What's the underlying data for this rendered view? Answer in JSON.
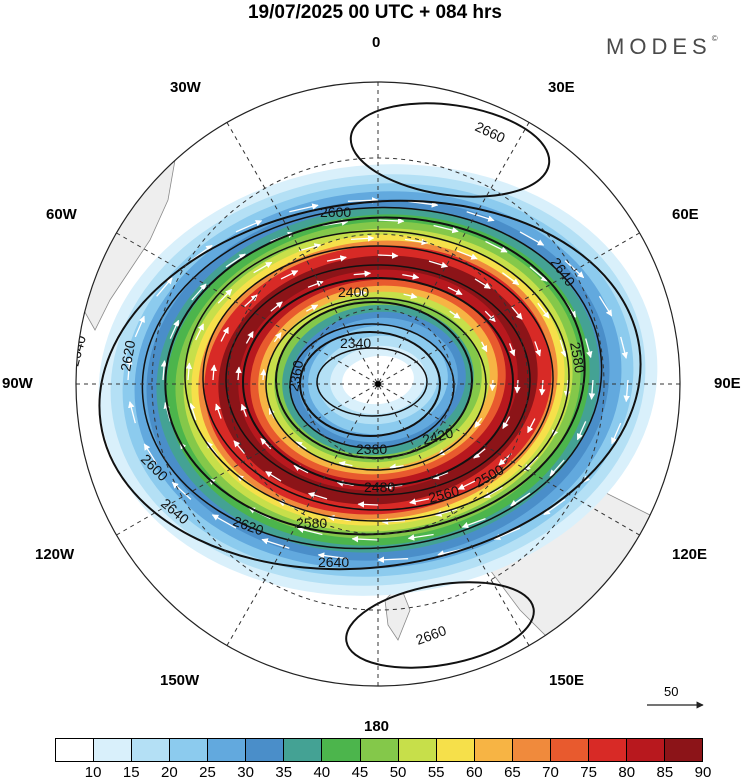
{
  "title": "19/07/2025  00 UTC  + 084 hrs",
  "brand": "MODES",
  "brand_mark": "©",
  "longitude_labels": {
    "lon_0": "0",
    "lon_30e": "30E",
    "lon_60e": "60E",
    "lon_90e": "90E",
    "lon_120e": "120E",
    "lon_150e": "150E",
    "lon_180": "180",
    "lon_150w": "150W",
    "lon_120w": "120W",
    "lon_90w": "90W",
    "lon_60w": "60W",
    "lon_30w": "30W"
  },
  "contour_labels": [
    "2660",
    "2600",
    "2640",
    "2620",
    "2580",
    "2400",
    "2340",
    "2360",
    "2380",
    "2420",
    "2480",
    "2560",
    "2500",
    "2640",
    "2600",
    "2620",
    "2640",
    "2580",
    "2660",
    "2640"
  ],
  "wind_speed_colorbar": {
    "labels": [
      "10",
      "15",
      "20",
      "25",
      "30",
      "35",
      "40",
      "45",
      "50",
      "55",
      "60",
      "65",
      "70",
      "75",
      "80",
      "85",
      "90"
    ],
    "colors": [
      "#ffffff",
      "#d9f0fb",
      "#b4e0f5",
      "#8ccbee",
      "#62a9de",
      "#4a8ec9",
      "#44a294",
      "#4cb54c",
      "#84c84a",
      "#c7df4a",
      "#f6e04a",
      "#f7b444",
      "#f08a3c",
      "#e85a2e",
      "#d82a26",
      "#b8181e",
      "#8c1418"
    ]
  },
  "reference_vector": {
    "label": "50"
  },
  "map_colors": {
    "land": "#eeeeee",
    "coast": "#8a8a8a",
    "grid": "#333333",
    "contour": "#111111",
    "wind_arrow": "#ffffff"
  }
}
